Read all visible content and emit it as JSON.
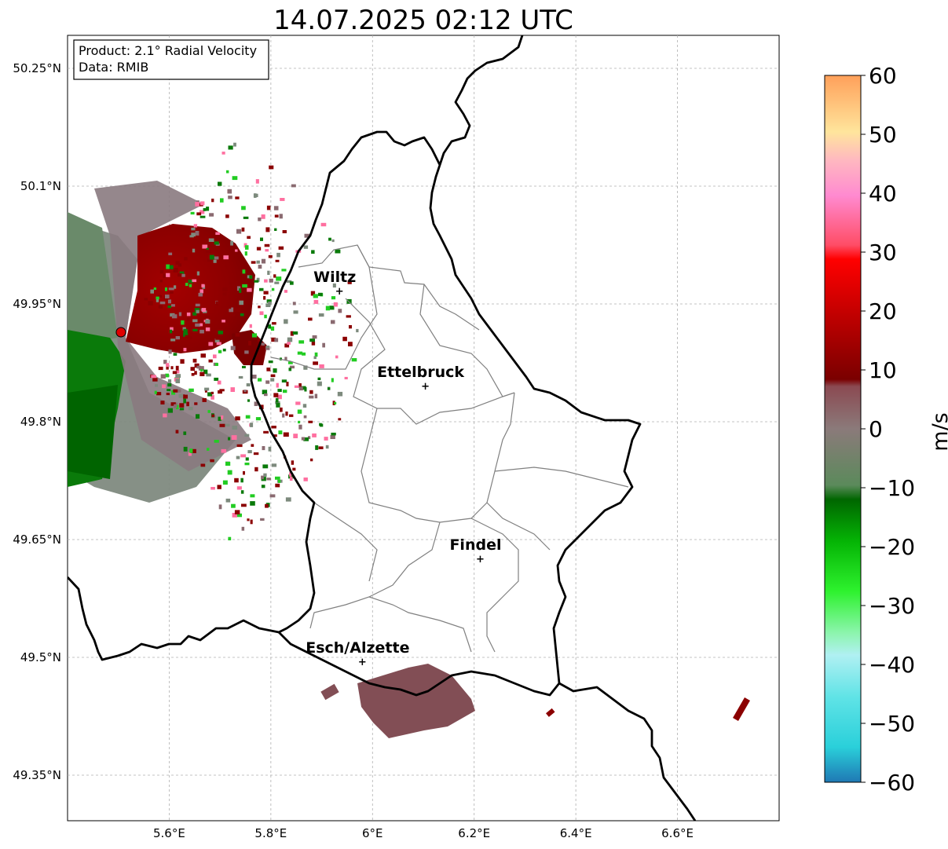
{
  "title": "14.07.2025 02:12 UTC",
  "info_box": {
    "line1": "Product: 2.1° Radial Velocity",
    "line2": "Data: RMIB"
  },
  "lat_labels": [
    "50.25°N",
    "50.1°N",
    "49.95°N",
    "49.8°N",
    "49.65°N",
    "49.5°N",
    "49.35°N"
  ],
  "lon_labels": [
    "5.6°E",
    "5.8°E",
    "6°E",
    "6.2°E",
    "6.4°E",
    "6.6°E"
  ],
  "cities": [
    {
      "name": "Wiltz",
      "lon": 5.935,
      "lat": 49.968
    },
    {
      "name": "Ettelbruck",
      "lon": 6.104,
      "lat": 49.847
    },
    {
      "name": "Findel",
      "lon": 6.212,
      "lat": 49.627
    },
    {
      "name": "Esch/Alzette",
      "lon": 5.98,
      "lat": 49.496
    }
  ],
  "radar_site": {
    "lon": 5.505,
    "lat": 49.914
  },
  "colorbar": {
    "unit": "m/s",
    "min": -60,
    "max": 60,
    "tick_labels": [
      "60",
      "50",
      "40",
      "30",
      "20",
      "10",
      "0",
      "−10",
      "−20",
      "−30",
      "−40",
      "−50",
      "−60"
    ],
    "colors": [
      "#1f78b4",
      "#29b6d1",
      "#2fdde0",
      "#6be6e8",
      "#a6f0f0",
      "#8ef5b0",
      "#3cf75a",
      "#0ae00a",
      "#05b505",
      "#007a00",
      "#5e8a5e",
      "#8a7a7a",
      "#8b4a55",
      "#8b0000",
      "#c80000",
      "#f00a0a",
      "#ff4f6a",
      "#ff8acb",
      "#ffb6c6",
      "#ffe49a",
      "#ffc27c",
      "#ffa05a"
    ]
  },
  "colors": {
    "border": "#000000",
    "canton": "#808080",
    "grid": "#b0b0b0",
    "receding": "#8b0000",
    "approaching": "#0a7a0a",
    "near_zero": "#7d8a7d",
    "site": "#e00000"
  }
}
